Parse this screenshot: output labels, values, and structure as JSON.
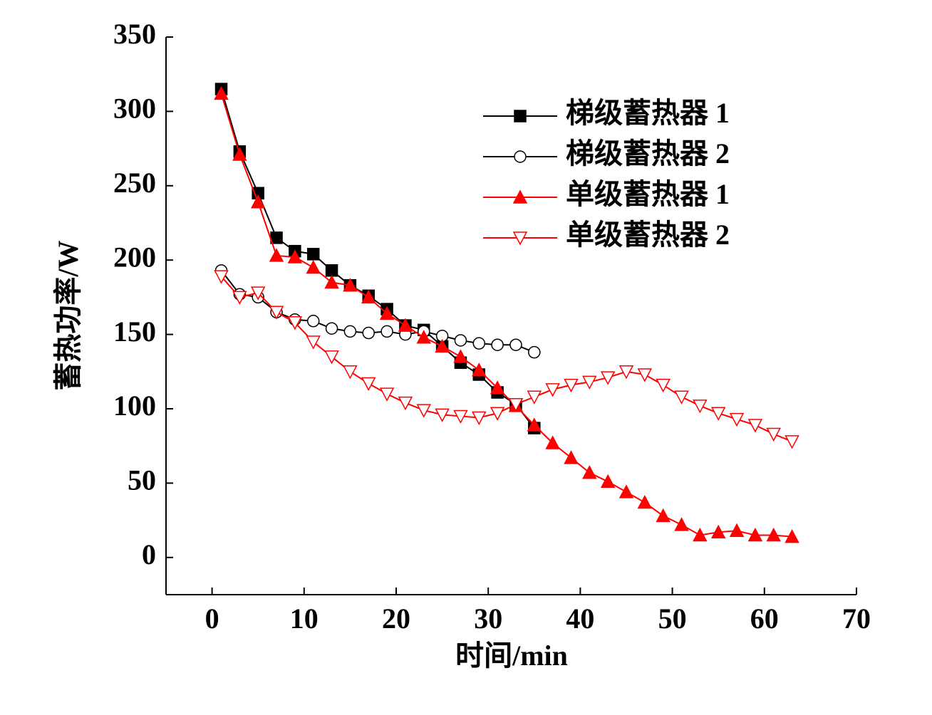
{
  "chart_data": {
    "type": "line",
    "xlabel": "时间/min",
    "ylabel": "蓄热功率/W",
    "x": [
      1,
      3,
      5,
      7,
      9,
      11,
      13,
      15,
      17,
      19,
      21,
      23,
      25,
      27,
      29,
      31,
      33,
      35,
      37,
      39,
      41,
      43,
      45,
      47,
      49,
      51,
      53,
      55,
      57,
      59,
      61,
      63
    ],
    "series": [
      {
        "name": "梯级蓄热器 1",
        "color": "#000000",
        "marker": "square",
        "marker_fill": "#000000",
        "values": [
          315,
          273,
          245,
          215,
          206,
          204,
          193,
          183,
          176,
          167,
          156,
          153,
          142,
          131,
          123,
          111,
          103,
          87,
          null,
          null,
          null,
          null,
          null,
          null,
          null,
          null,
          null,
          null,
          null,
          null,
          null,
          null
        ]
      },
      {
        "name": "梯级蓄热器 2",
        "color": "#000000",
        "marker": "circle",
        "marker_fill": "#ffffff",
        "values": [
          193,
          177,
          175,
          165,
          160,
          159,
          154,
          152,
          151,
          152,
          150,
          152,
          149,
          146,
          144,
          143,
          143,
          138,
          null,
          null,
          null,
          null,
          null,
          null,
          null,
          null,
          null,
          null,
          null,
          null,
          null,
          null
        ]
      },
      {
        "name": "单级蓄热器 1",
        "color": "#ff0000",
        "marker": "triangle-up",
        "marker_fill": "#ff0000",
        "values": [
          312,
          271,
          239,
          203,
          202,
          195,
          185,
          183,
          175,
          164,
          156,
          148,
          142,
          135,
          126,
          114,
          102,
          89,
          77,
          67,
          57,
          51,
          44,
          37,
          28,
          22,
          15,
          17,
          18,
          15,
          15,
          14
        ]
      },
      {
        "name": "单级蓄热器 2",
        "color": "#ff0000",
        "marker": "triangle-down",
        "marker_fill": "#ffffff",
        "values": [
          189,
          175,
          178,
          165,
          158,
          145,
          135,
          125,
          117,
          110,
          104,
          99,
          96,
          95,
          94,
          97,
          103,
          108,
          113,
          116,
          118,
          121,
          125,
          123,
          116,
          108,
          102,
          97,
          93,
          89,
          83,
          78
        ]
      }
    ],
    "xlim": [
      -5,
      70
    ],
    "xticks": [
      0,
      10,
      20,
      30,
      40,
      50,
      60,
      70
    ],
    "ylim": [
      -25,
      350
    ],
    "yticks": [
      0,
      50,
      100,
      150,
      200,
      250,
      300,
      350
    ],
    "legend": "upper right"
  }
}
